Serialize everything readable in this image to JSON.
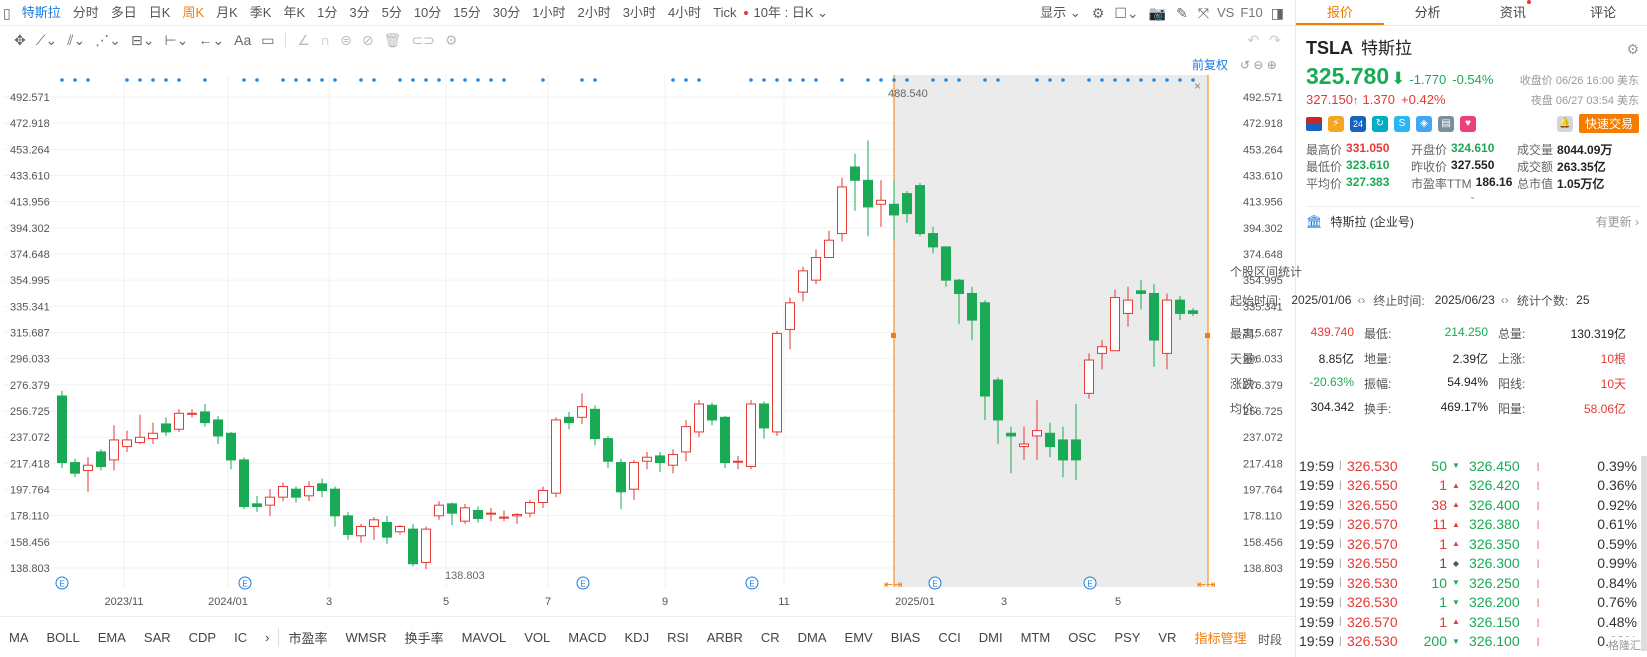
{
  "toolbar": {
    "items": [
      {
        "label": "特斯拉",
        "type": "active"
      },
      {
        "label": "分时"
      },
      {
        "label": "多日"
      },
      {
        "label": "日K"
      },
      {
        "label": "周K",
        "type": "orange"
      },
      {
        "label": "月K"
      },
      {
        "label": "季K"
      },
      {
        "label": "年K"
      },
      {
        "label": "1分"
      },
      {
        "label": "3分"
      },
      {
        "label": "5分"
      },
      {
        "label": "10分"
      },
      {
        "label": "15分"
      },
      {
        "label": "30分"
      },
      {
        "label": "1小时"
      },
      {
        "label": "2小时"
      },
      {
        "label": "3小时"
      },
      {
        "label": "4小时"
      },
      {
        "label": "Tick",
        "dot": true
      },
      {
        "label": "10年 : 日K ⌄"
      }
    ],
    "display": "显示 ⌄",
    "vs": "VS",
    "f10": "F10"
  },
  "drawtools": {
    "text_tool": "Aa"
  },
  "chart": {
    "front_adjust": "前复权",
    "yticks": [
      "492.571",
      "472.918",
      "453.264",
      "433.610",
      "413.956",
      "394.302",
      "374.648",
      "354.995",
      "335.341",
      "315.687",
      "296.033",
      "276.379",
      "256.725",
      "237.072",
      "217.418",
      "197.764",
      "178.110",
      "158.456",
      "138.803"
    ],
    "high_label": "488.540",
    "low_label": "138.803",
    "x_labels": [
      "2023/11",
      "2024/01",
      "3",
      "5",
      "7",
      "9",
      "11",
      "2025/01",
      "3",
      "5"
    ],
    "event_marker": "E",
    "close_marker": "×",
    "colors": {
      "up": "#e53935",
      "down": "#1aaa55",
      "dot": "#1e88e5",
      "range": "#f57c00"
    }
  },
  "indicators": [
    "MA",
    "BOLL",
    "EMA",
    "SAR",
    "CDP",
    "IC",
    "›",
    "市盈率",
    "WMSR",
    "换手率",
    "MAVOL",
    "VOL",
    "MACD",
    "KDJ",
    "RSI",
    "ARBR",
    "CR",
    "DMA",
    "EMV",
    "BIAS",
    "CCI",
    "DMI",
    "MTM",
    "OSC",
    "PSY",
    "VR",
    "指标管理"
  ],
  "right": {
    "tabs": [
      "报价",
      "分析",
      "资讯",
      "评论"
    ],
    "ticker": "TSLA",
    "name": "特斯拉",
    "price": "325.780",
    "change": "-1.770",
    "pct": "-0.54%",
    "close_label": "收盘价 06/26 16:00 美东",
    "night_price": "327.150",
    "night_change": "1.370",
    "night_pct": "+0.42%",
    "night_label": "夜盘 06/27 03:54 美东",
    "quick_trade": "快速交易",
    "badges": [
      "24",
      "S"
    ],
    "fields": [
      [
        {
          "k": "最高价",
          "v": "331.050",
          "c": "red"
        },
        {
          "k": "开盘价",
          "v": "324.610",
          "c": "green"
        },
        {
          "k": "成交量",
          "v": "8044.09万",
          "c": "dark"
        }
      ],
      [
        {
          "k": "最低价",
          "v": "323.610",
          "c": "green"
        },
        {
          "k": "昨收价",
          "v": "327.550",
          "c": "dark"
        },
        {
          "k": "成交额",
          "v": "263.35亿",
          "c": "dark"
        }
      ],
      [
        {
          "k": "平均价",
          "v": "327.383",
          "c": "green"
        },
        {
          "k": "市盈率TTM",
          "v": "186.16",
          "c": "dark"
        },
        {
          "k": "总市值",
          "v": "1.05万亿",
          "c": "dark"
        }
      ]
    ],
    "company": "特斯拉 (企业号)",
    "company_update": "有更新 ›",
    "interval_title": "个股区间统计",
    "start_label": "起始时间:",
    "start": "2025/01/06",
    "end_label": "终止时间:",
    "end": "2025/06/23",
    "count_label": "统计个数:",
    "count": "25",
    "stats": [
      [
        {
          "k": "最高:",
          "v": "439.740",
          "c": "red"
        },
        {
          "k": "最低:",
          "v": "214.250",
          "c": "green"
        },
        {
          "k": "总量:",
          "v": "130.319亿",
          "c": "dark"
        }
      ],
      [
        {
          "k": "天量:",
          "v": "8.85亿",
          "c": "dark"
        },
        {
          "k": "地量:",
          "v": "2.39亿",
          "c": "dark"
        },
        {
          "k": "上涨:",
          "v": "10根",
          "c": "red"
        }
      ],
      [
        {
          "k": "涨跌:",
          "v": "-20.63%",
          "c": "green"
        },
        {
          "k": "振幅:",
          "v": "54.94%",
          "c": "dark"
        },
        {
          "k": "阳线:",
          "v": "10天",
          "c": "red"
        }
      ],
      [
        {
          "k": "均价:",
          "v": "304.342",
          "c": "dark"
        },
        {
          "k": "换手:",
          "v": "469.17%",
          "c": "dark"
        },
        {
          "k": "阳量:",
          "v": "58.06亿",
          "c": "red"
        }
      ]
    ],
    "side_label": "时段",
    "trades": [
      {
        "t": "19:59",
        "p": "326.530",
        "q": "50",
        "d": "down",
        "b": "326.450",
        "pc": "0.39%"
      },
      {
        "t": "19:59",
        "p": "326.550",
        "q": "1",
        "d": "up",
        "b": "326.420",
        "pc": "0.36%"
      },
      {
        "t": "19:59",
        "p": "326.550",
        "q": "38",
        "d": "up",
        "b": "326.400",
        "pc": "0.92%"
      },
      {
        "t": "19:59",
        "p": "326.570",
        "q": "11",
        "d": "up",
        "b": "326.380",
        "pc": "0.61%"
      },
      {
        "t": "19:59",
        "p": "326.570",
        "q": "1",
        "d": "up",
        "b": "326.350",
        "pc": "0.59%"
      },
      {
        "t": "19:59",
        "p": "326.550",
        "q": "1",
        "d": "flat",
        "b": "326.300",
        "pc": "0.99%"
      },
      {
        "t": "19:59",
        "p": "326.530",
        "q": "10",
        "d": "down",
        "b": "326.250",
        "pc": "0.84%"
      },
      {
        "t": "19:59",
        "p": "326.530",
        "q": "1",
        "d": "down",
        "b": "326.200",
        "pc": "0.76%"
      },
      {
        "t": "19:59",
        "p": "326.570",
        "q": "1",
        "d": "up",
        "b": "326.150",
        "pc": "0.48%"
      },
      {
        "t": "19:59",
        "p": "326.530",
        "q": "200",
        "d": "down",
        "b": "326.100",
        "pc": "0.62%"
      }
    ],
    "watermark": "格隆汇"
  }
}
